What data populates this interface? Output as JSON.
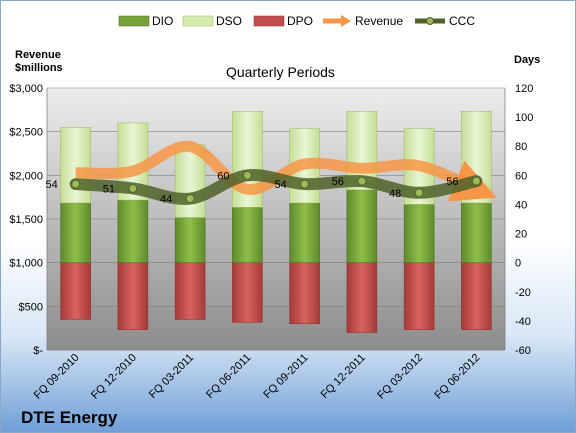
{
  "chart_data": {
    "type": "bar",
    "title": "Quarterly Periods",
    "company": "DTE Energy",
    "left_axis_title_line1": "Revenue",
    "left_axis_title_line2": "$millions",
    "right_axis_title": "Days",
    "categories": [
      "FQ 09-2010",
      "FQ 12-2010",
      "FQ 03-2011",
      "FQ 06-2011",
      "FQ 09-2011",
      "FQ 12-2011",
      "FQ 03-2012",
      "FQ 06-2012"
    ],
    "left_ticks": [
      "$-",
      "$500",
      "$1,000",
      "$1,500",
      "$2,000",
      "$2,500",
      "$3,000"
    ],
    "right_ticks": [
      "-60",
      "-40",
      "-20",
      "0",
      "20",
      "40",
      "60",
      "80",
      "100",
      "120"
    ],
    "ylim_left": [
      0,
      3000
    ],
    "ylim_right": [
      -60,
      120
    ],
    "legend_position": "top",
    "series": [
      {
        "name": "DIO",
        "values": [
          41,
          43,
          31,
          38,
          41,
          50,
          40,
          41
        ],
        "color": "#77a33a"
      },
      {
        "name": "DSO",
        "values": [
          52,
          53,
          50,
          66,
          51,
          54,
          52,
          63
        ],
        "color": "#d6ebb1"
      },
      {
        "name": "DPO",
        "values": [
          -39,
          -46,
          -39,
          -41,
          -42,
          -48,
          -46,
          -46
        ],
        "color": "#c0504d"
      },
      {
        "name": "Revenue",
        "values": [
          2030,
          2050,
          2330,
          1840,
          2130,
          2080,
          2110,
          1840
        ],
        "color": "#f79646"
      },
      {
        "name": "CCC",
        "values": [
          54,
          51,
          44,
          60,
          54,
          56,
          48,
          56
        ],
        "color": "#4f6228"
      }
    ],
    "ccc_labels": [
      "54",
      "51",
      "44",
      "60",
      "54",
      "56",
      "48",
      "56"
    ]
  }
}
